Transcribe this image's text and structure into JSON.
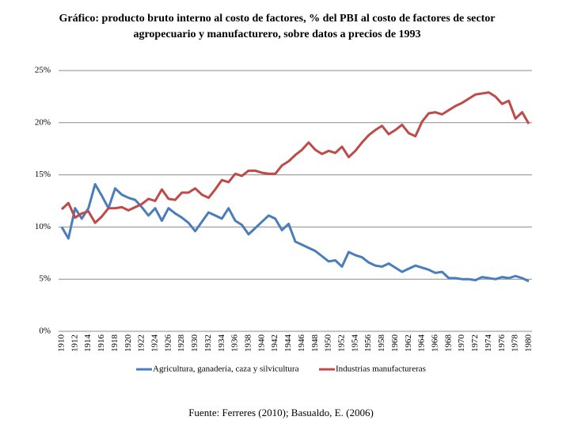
{
  "chart_data": {
    "type": "line",
    "title": "Gráfico: producto bruto interno al costo de factores, % del PBI al costo de factores de sector agropecuario y manufacturero, sobre datos a precios de 1993",
    "source": "Fuente: Ferreres (2010); Basualdo, E. (2006)",
    "x": [
      1910,
      1911,
      1912,
      1913,
      1914,
      1915,
      1916,
      1917,
      1918,
      1919,
      1920,
      1921,
      1922,
      1923,
      1924,
      1925,
      1926,
      1927,
      1928,
      1929,
      1930,
      1931,
      1932,
      1933,
      1934,
      1935,
      1936,
      1937,
      1938,
      1939,
      1940,
      1941,
      1942,
      1943,
      1944,
      1945,
      1946,
      1947,
      1948,
      1949,
      1950,
      1951,
      1952,
      1953,
      1954,
      1955,
      1956,
      1957,
      1958,
      1959,
      1960,
      1961,
      1962,
      1963,
      1964,
      1965,
      1966,
      1967,
      1968,
      1969,
      1970,
      1971,
      1972,
      1973,
      1974,
      1975,
      1976,
      1977,
      1978,
      1979,
      1980
    ],
    "xlim": [
      1910,
      1980
    ],
    "xticks": [
      1910,
      1912,
      1914,
      1916,
      1918,
      1920,
      1922,
      1924,
      1926,
      1928,
      1930,
      1932,
      1934,
      1936,
      1938,
      1940,
      1942,
      1944,
      1946,
      1948,
      1950,
      1952,
      1954,
      1956,
      1958,
      1960,
      1962,
      1964,
      1966,
      1968,
      1970,
      1972,
      1974,
      1976,
      1978,
      1980
    ],
    "ylim": [
      0,
      25
    ],
    "yticks": [
      {
        "value": 0,
        "label": "0%"
      },
      {
        "value": 5,
        "label": "5%"
      },
      {
        "value": 10,
        "label": "10%"
      },
      {
        "value": 15,
        "label": "15%"
      },
      {
        "value": 20,
        "label": "20%"
      },
      {
        "value": 25,
        "label": "25%"
      }
    ],
    "grid": true,
    "legend": "bottom",
    "series": [
      {
        "name": "Agricultura, ganadería, caza y silvicultura",
        "color": "#4a7ebb",
        "values": [
          10.0,
          8.9,
          11.8,
          10.8,
          11.8,
          14.1,
          13.0,
          11.8,
          13.7,
          13.1,
          12.8,
          12.6,
          11.9,
          11.1,
          11.8,
          10.6,
          11.8,
          11.3,
          10.9,
          10.4,
          9.6,
          10.5,
          11.4,
          11.1,
          10.8,
          11.8,
          10.6,
          10.2,
          9.3,
          9.9,
          10.5,
          11.1,
          10.8,
          9.7,
          10.3,
          8.6,
          8.3,
          8.0,
          7.7,
          7.2,
          6.7,
          6.8,
          6.2,
          7.6,
          7.3,
          7.1,
          6.6,
          6.3,
          6.2,
          6.5,
          6.1,
          5.7,
          6.0,
          6.3,
          6.1,
          5.9,
          5.6,
          5.7,
          5.1,
          5.1,
          5.0,
          5.0,
          4.9,
          5.2,
          5.1,
          5.0,
          5.2,
          5.1,
          5.3,
          5.1,
          4.8
        ]
      },
      {
        "name": "Industrias manufactureras",
        "color": "#be4b48",
        "values": [
          11.7,
          12.3,
          10.9,
          11.3,
          11.5,
          10.4,
          11.0,
          11.8,
          11.8,
          11.9,
          11.6,
          11.9,
          12.2,
          12.7,
          12.5,
          13.6,
          12.7,
          12.6,
          13.3,
          13.3,
          13.7,
          13.1,
          12.8,
          13.6,
          14.5,
          14.3,
          15.1,
          14.9,
          15.4,
          15.4,
          15.2,
          15.1,
          15.1,
          15.9,
          16.3,
          16.9,
          17.4,
          18.1,
          17.4,
          17.0,
          17.3,
          17.1,
          17.7,
          16.7,
          17.3,
          18.1,
          18.8,
          19.3,
          19.7,
          18.9,
          19.3,
          19.8,
          19.0,
          18.7,
          20.1,
          20.9,
          21.0,
          20.8,
          21.2,
          21.6,
          21.9,
          22.3,
          22.7,
          22.8,
          22.9,
          22.5,
          21.8,
          22.1,
          20.4,
          21.0,
          19.9
        ]
      }
    ]
  }
}
